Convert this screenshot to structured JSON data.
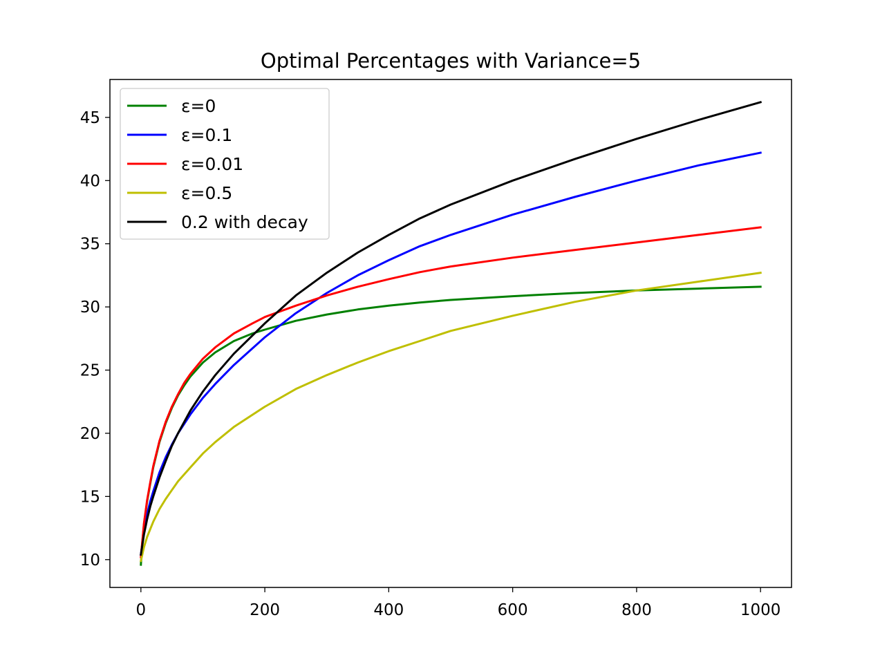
{
  "chart_data": {
    "type": "line",
    "title": "Optimal Percentages with Variance=5",
    "xlabel": "",
    "ylabel": "",
    "xlim": [
      -50,
      1050
    ],
    "ylim": [
      7.8,
      48
    ],
    "xticks": [
      0,
      200,
      400,
      600,
      800,
      1000
    ],
    "yticks": [
      10,
      15,
      20,
      25,
      30,
      35,
      40,
      45
    ],
    "grid": false,
    "legend": "top-left",
    "series": [
      {
        "name": "ε=0",
        "color": "#008000",
        "x": [
          0,
          2,
          5,
          10,
          15,
          20,
          30,
          40,
          50,
          60,
          70,
          80,
          100,
          120,
          150,
          180,
          200,
          250,
          300,
          350,
          400,
          450,
          500,
          600,
          700,
          800,
          900,
          1000
        ],
        "y": [
          9.6,
          11.2,
          12.8,
          14.6,
          16.0,
          17.3,
          19.3,
          20.8,
          22.0,
          23.0,
          23.8,
          24.5,
          25.6,
          26.4,
          27.3,
          27.9,
          28.2,
          28.9,
          29.4,
          29.8,
          30.1,
          30.35,
          30.55,
          30.85,
          31.1,
          31.3,
          31.45,
          31.6
        ]
      },
      {
        "name": "ε=0.1",
        "color": "#0000ff",
        "x": [
          0,
          5,
          10,
          15,
          20,
          30,
          40,
          50,
          60,
          80,
          100,
          120,
          150,
          200,
          250,
          300,
          350,
          400,
          450,
          500,
          600,
          700,
          800,
          900,
          1000
        ],
        "y": [
          10.4,
          12.3,
          13.6,
          14.6,
          15.4,
          16.9,
          18.1,
          19.1,
          20.0,
          21.5,
          22.8,
          23.9,
          25.4,
          27.6,
          29.5,
          31.1,
          32.5,
          33.7,
          34.8,
          35.7,
          37.3,
          38.7,
          40.0,
          41.2,
          42.2
        ]
      },
      {
        "name": "ε=0.01",
        "color": "#ff0000",
        "x": [
          0,
          2,
          5,
          10,
          15,
          20,
          30,
          40,
          50,
          60,
          70,
          80,
          100,
          120,
          150,
          180,
          200,
          250,
          300,
          350,
          400,
          450,
          500,
          600,
          700,
          800,
          900,
          1000
        ],
        "y": [
          10.2,
          11.3,
          12.9,
          14.7,
          16.1,
          17.4,
          19.4,
          20.9,
          22.1,
          23.1,
          24.0,
          24.7,
          25.9,
          26.8,
          27.9,
          28.7,
          29.2,
          30.1,
          30.9,
          31.6,
          32.2,
          32.75,
          33.2,
          33.9,
          34.5,
          35.1,
          35.7,
          36.3
        ]
      },
      {
        "name": "ε=0.5",
        "color": "#bfbf00",
        "x": [
          0,
          5,
          10,
          20,
          30,
          40,
          50,
          60,
          80,
          100,
          120,
          150,
          200,
          250,
          300,
          350,
          400,
          450,
          500,
          600,
          700,
          800,
          900,
          1000
        ],
        "y": [
          9.9,
          11.0,
          11.8,
          13.0,
          14.0,
          14.8,
          15.5,
          16.2,
          17.3,
          18.4,
          19.3,
          20.5,
          22.1,
          23.5,
          24.6,
          25.6,
          26.5,
          27.3,
          28.1,
          29.3,
          30.4,
          31.3,
          32.0,
          32.7
        ]
      },
      {
        "name": "0.2 with decay",
        "color": "#000000",
        "x": [
          0,
          5,
          10,
          15,
          20,
          30,
          40,
          50,
          60,
          80,
          100,
          120,
          150,
          200,
          250,
          300,
          350,
          400,
          450,
          500,
          600,
          700,
          800,
          900,
          1000
        ],
        "y": [
          10.4,
          12.0,
          13.2,
          14.2,
          15.0,
          16.5,
          17.8,
          19.0,
          20.0,
          21.8,
          23.3,
          24.6,
          26.3,
          28.7,
          30.9,
          32.7,
          34.3,
          35.7,
          37.0,
          38.1,
          40.0,
          41.7,
          43.3,
          44.8,
          46.2
        ]
      }
    ]
  }
}
